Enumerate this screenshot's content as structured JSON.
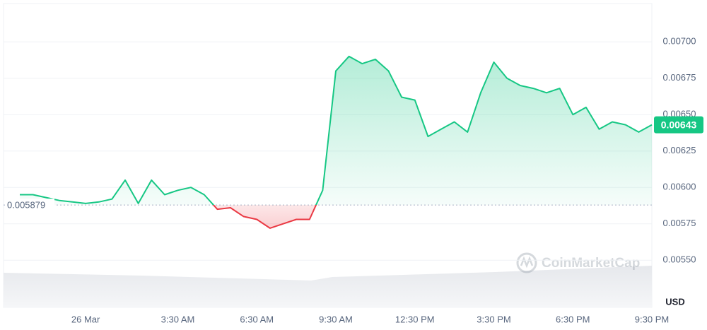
{
  "chart_data": {
    "type": "line",
    "categories": [
      null,
      null,
      null,
      null,
      null,
      "26 Mar",
      null,
      null,
      null,
      null,
      null,
      null,
      "3:30 AM",
      null,
      null,
      null,
      null,
      null,
      "6:30 AM",
      null,
      null,
      null,
      null,
      null,
      "9:30 AM",
      null,
      null,
      null,
      null,
      null,
      "12:30 PM",
      null,
      null,
      null,
      null,
      null,
      "3:30 PM",
      null,
      null,
      null,
      null,
      null,
      "6:30 PM",
      null,
      null,
      null,
      null,
      null,
      "9:30 PM"
    ],
    "values": [
      0.00595,
      0.00595,
      0.00593,
      0.00591,
      0.0059,
      0.00589,
      0.0059,
      0.00592,
      0.00605,
      0.00589,
      0.00605,
      0.00595,
      0.00598,
      0.006,
      0.00595,
      0.00585,
      0.00586,
      0.0058,
      0.00578,
      0.00572,
      0.00575,
      0.00578,
      0.00578,
      0.00598,
      0.0068,
      0.0069,
      0.00685,
      0.00688,
      0.0068,
      0.00662,
      0.0066,
      0.00635,
      0.0064,
      0.00645,
      0.00638,
      0.00665,
      0.00686,
      0.00675,
      0.0067,
      0.00668,
      0.00665,
      0.00668,
      0.0065,
      0.00655,
      0.0064,
      0.00645,
      0.00643,
      0.00638,
      0.00643
    ],
    "color_up": "#16c784",
    "color_down": "#ea3943",
    "baseline": 0.005879,
    "last_price": 0.00643,
    "ylim": [
      0.0052,
      0.0072
    ],
    "yticks": [
      {
        "value": 0.0055,
        "label": "0.00550"
      },
      0.00575,
      {
        "value": 0.006,
        "label": "0.00600"
      },
      0.00625,
      {
        "value": 0.0065,
        "label": "0.00650"
      },
      0.00675,
      {
        "value": 0.007,
        "label": "0.00700"
      }
    ],
    "grid": true,
    "y_unit": "USD",
    "watermark": "CoinMarketCap"
  }
}
